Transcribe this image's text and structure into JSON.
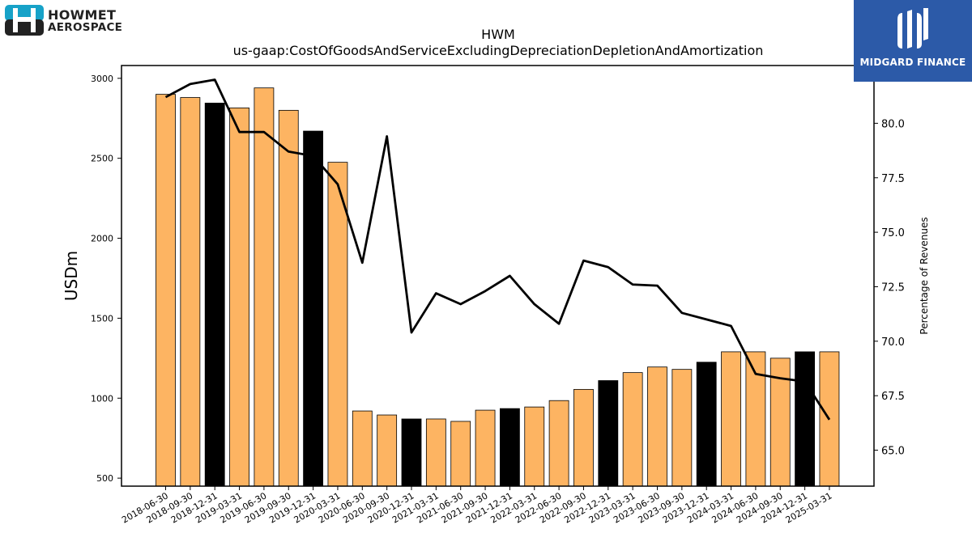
{
  "logos": {
    "left_line1": "HOWMET",
    "left_line2": "AEROSPACE",
    "right_text": "MIDGARD FINANCE",
    "right_bg": "#2c5aa8",
    "left_icon_color": "#17a2c8"
  },
  "chart_data": {
    "type": "bar",
    "title": "HWM",
    "subtitle": "us-gaap:CostOfGoodsAndServiceExcludingDepreciationDepletionAndAmortization",
    "ylabel": "USDm",
    "y2label": "Percentage of Revenues",
    "ylim": [
      450,
      3080
    ],
    "y2lim": [
      63.35,
      82.65
    ],
    "yticks": [
      500,
      1000,
      1500,
      2000,
      2500,
      3000
    ],
    "y2ticks": [
      "65.0",
      "67.5",
      "70.0",
      "72.5",
      "75.0",
      "77.5",
      "80.0"
    ],
    "colors": {
      "bar": "#fdb462",
      "bar_q4": "#000000",
      "line": "#000000"
    },
    "categories": [
      "2018-06-30",
      "2018-09-30",
      "2018-12-31",
      "2019-03-31",
      "2019-06-30",
      "2019-09-30",
      "2019-12-31",
      "2020-03-31",
      "2020-06-30",
      "2020-09-30",
      "2020-12-31",
      "2021-03-31",
      "2021-06-30",
      "2021-09-30",
      "2021-12-31",
      "2022-03-31",
      "2022-06-30",
      "2022-09-30",
      "2022-12-31",
      "2023-03-31",
      "2023-06-30",
      "2023-09-30",
      "2023-12-31",
      "2024-03-31",
      "2024-06-30",
      "2024-09-30",
      "2024-12-31",
      "2025-03-31"
    ],
    "series": [
      {
        "type": "bar",
        "values": [
          2900,
          2880,
          2845,
          2815,
          2940,
          2800,
          2670,
          2475,
          920,
          895,
          870,
          870,
          855,
          925,
          935,
          945,
          985,
          1055,
          1110,
          1160,
          1195,
          1180,
          1225,
          1290,
          1290,
          1250,
          1290,
          1290
        ],
        "highlight": [
          false,
          false,
          true,
          false,
          false,
          false,
          true,
          false,
          false,
          false,
          true,
          false,
          false,
          false,
          true,
          false,
          false,
          false,
          true,
          false,
          false,
          false,
          true,
          false,
          false,
          false,
          true,
          false
        ]
      },
      {
        "type": "line",
        "axis": "right",
        "values": [
          81.2,
          81.8,
          82.0,
          79.6,
          79.6,
          78.7,
          78.5,
          77.2,
          73.6,
          79.4,
          70.4,
          72.2,
          71.7,
          72.3,
          73.0,
          71.7,
          70.8,
          73.7,
          73.4,
          72.6,
          72.55,
          71.3,
          71.0,
          70.7,
          68.5,
          68.3,
          68.15,
          66.4
        ]
      }
    ],
    "grid": false,
    "legend": "none"
  }
}
